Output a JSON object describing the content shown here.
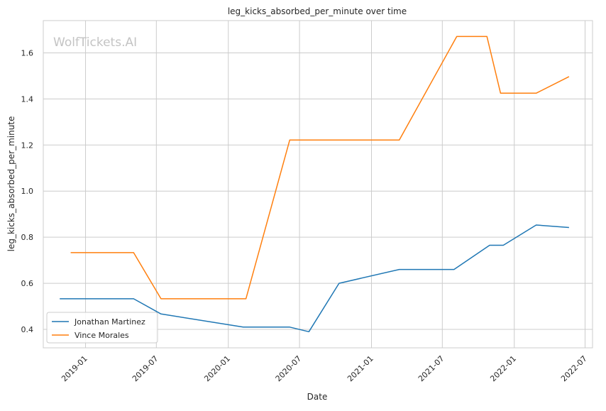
{
  "chart_data": {
    "type": "line",
    "title": "leg_kicks_absorbed_per_minute over time",
    "xlabel": "Date",
    "ylabel": "leg_kicks_absorbed_per_minute",
    "watermark": "WolfTickets.AI",
    "x_ticks": [
      "2019-01",
      "2019-07",
      "2020-01",
      "2020-07",
      "2021-01",
      "2021-07",
      "2022-01",
      "2022-07"
    ],
    "y_ticks": [
      "0.4",
      "0.6",
      "0.8",
      "1.0",
      "1.2",
      "1.4",
      "1.6"
    ],
    "xlim": [
      "2018-09-15",
      "2022-07-20"
    ],
    "ylim": [
      0.32,
      1.74
    ],
    "grid": true,
    "legend_position": "bottom-left",
    "series": [
      {
        "name": "Jonathan Martinez",
        "color": "#1f77b4",
        "points": [
          {
            "x": "2018-10-27",
            "y": 0.533
          },
          {
            "x": "2019-05-04",
            "y": 0.533
          },
          {
            "x": "2019-07-13",
            "y": 0.467
          },
          {
            "x": "2020-02-08",
            "y": 0.41
          },
          {
            "x": "2020-06-06",
            "y": 0.41
          },
          {
            "x": "2020-07-25",
            "y": 0.39
          },
          {
            "x": "2020-10-10",
            "y": 0.6
          },
          {
            "x": "2021-03-13",
            "y": 0.66
          },
          {
            "x": "2021-07-31",
            "y": 0.66
          },
          {
            "x": "2021-10-30",
            "y": 0.765
          },
          {
            "x": "2021-12-04",
            "y": 0.765
          },
          {
            "x": "2022-02-26",
            "y": 0.853
          },
          {
            "x": "2022-05-21",
            "y": 0.842
          }
        ]
      },
      {
        "name": "Vince Morales",
        "color": "#ff7f0e",
        "points": [
          {
            "x": "2018-11-24",
            "y": 0.733
          },
          {
            "x": "2019-05-04",
            "y": 0.733
          },
          {
            "x": "2019-07-13",
            "y": 0.533
          },
          {
            "x": "2020-02-15",
            "y": 0.533
          },
          {
            "x": "2020-06-06",
            "y": 1.222
          },
          {
            "x": "2021-03-13",
            "y": 1.222
          },
          {
            "x": "2021-08-07",
            "y": 1.671
          },
          {
            "x": "2021-10-23",
            "y": 1.671
          },
          {
            "x": "2021-11-27",
            "y": 1.425
          },
          {
            "x": "2022-02-26",
            "y": 1.425
          },
          {
            "x": "2022-05-21",
            "y": 1.497
          }
        ]
      }
    ]
  }
}
